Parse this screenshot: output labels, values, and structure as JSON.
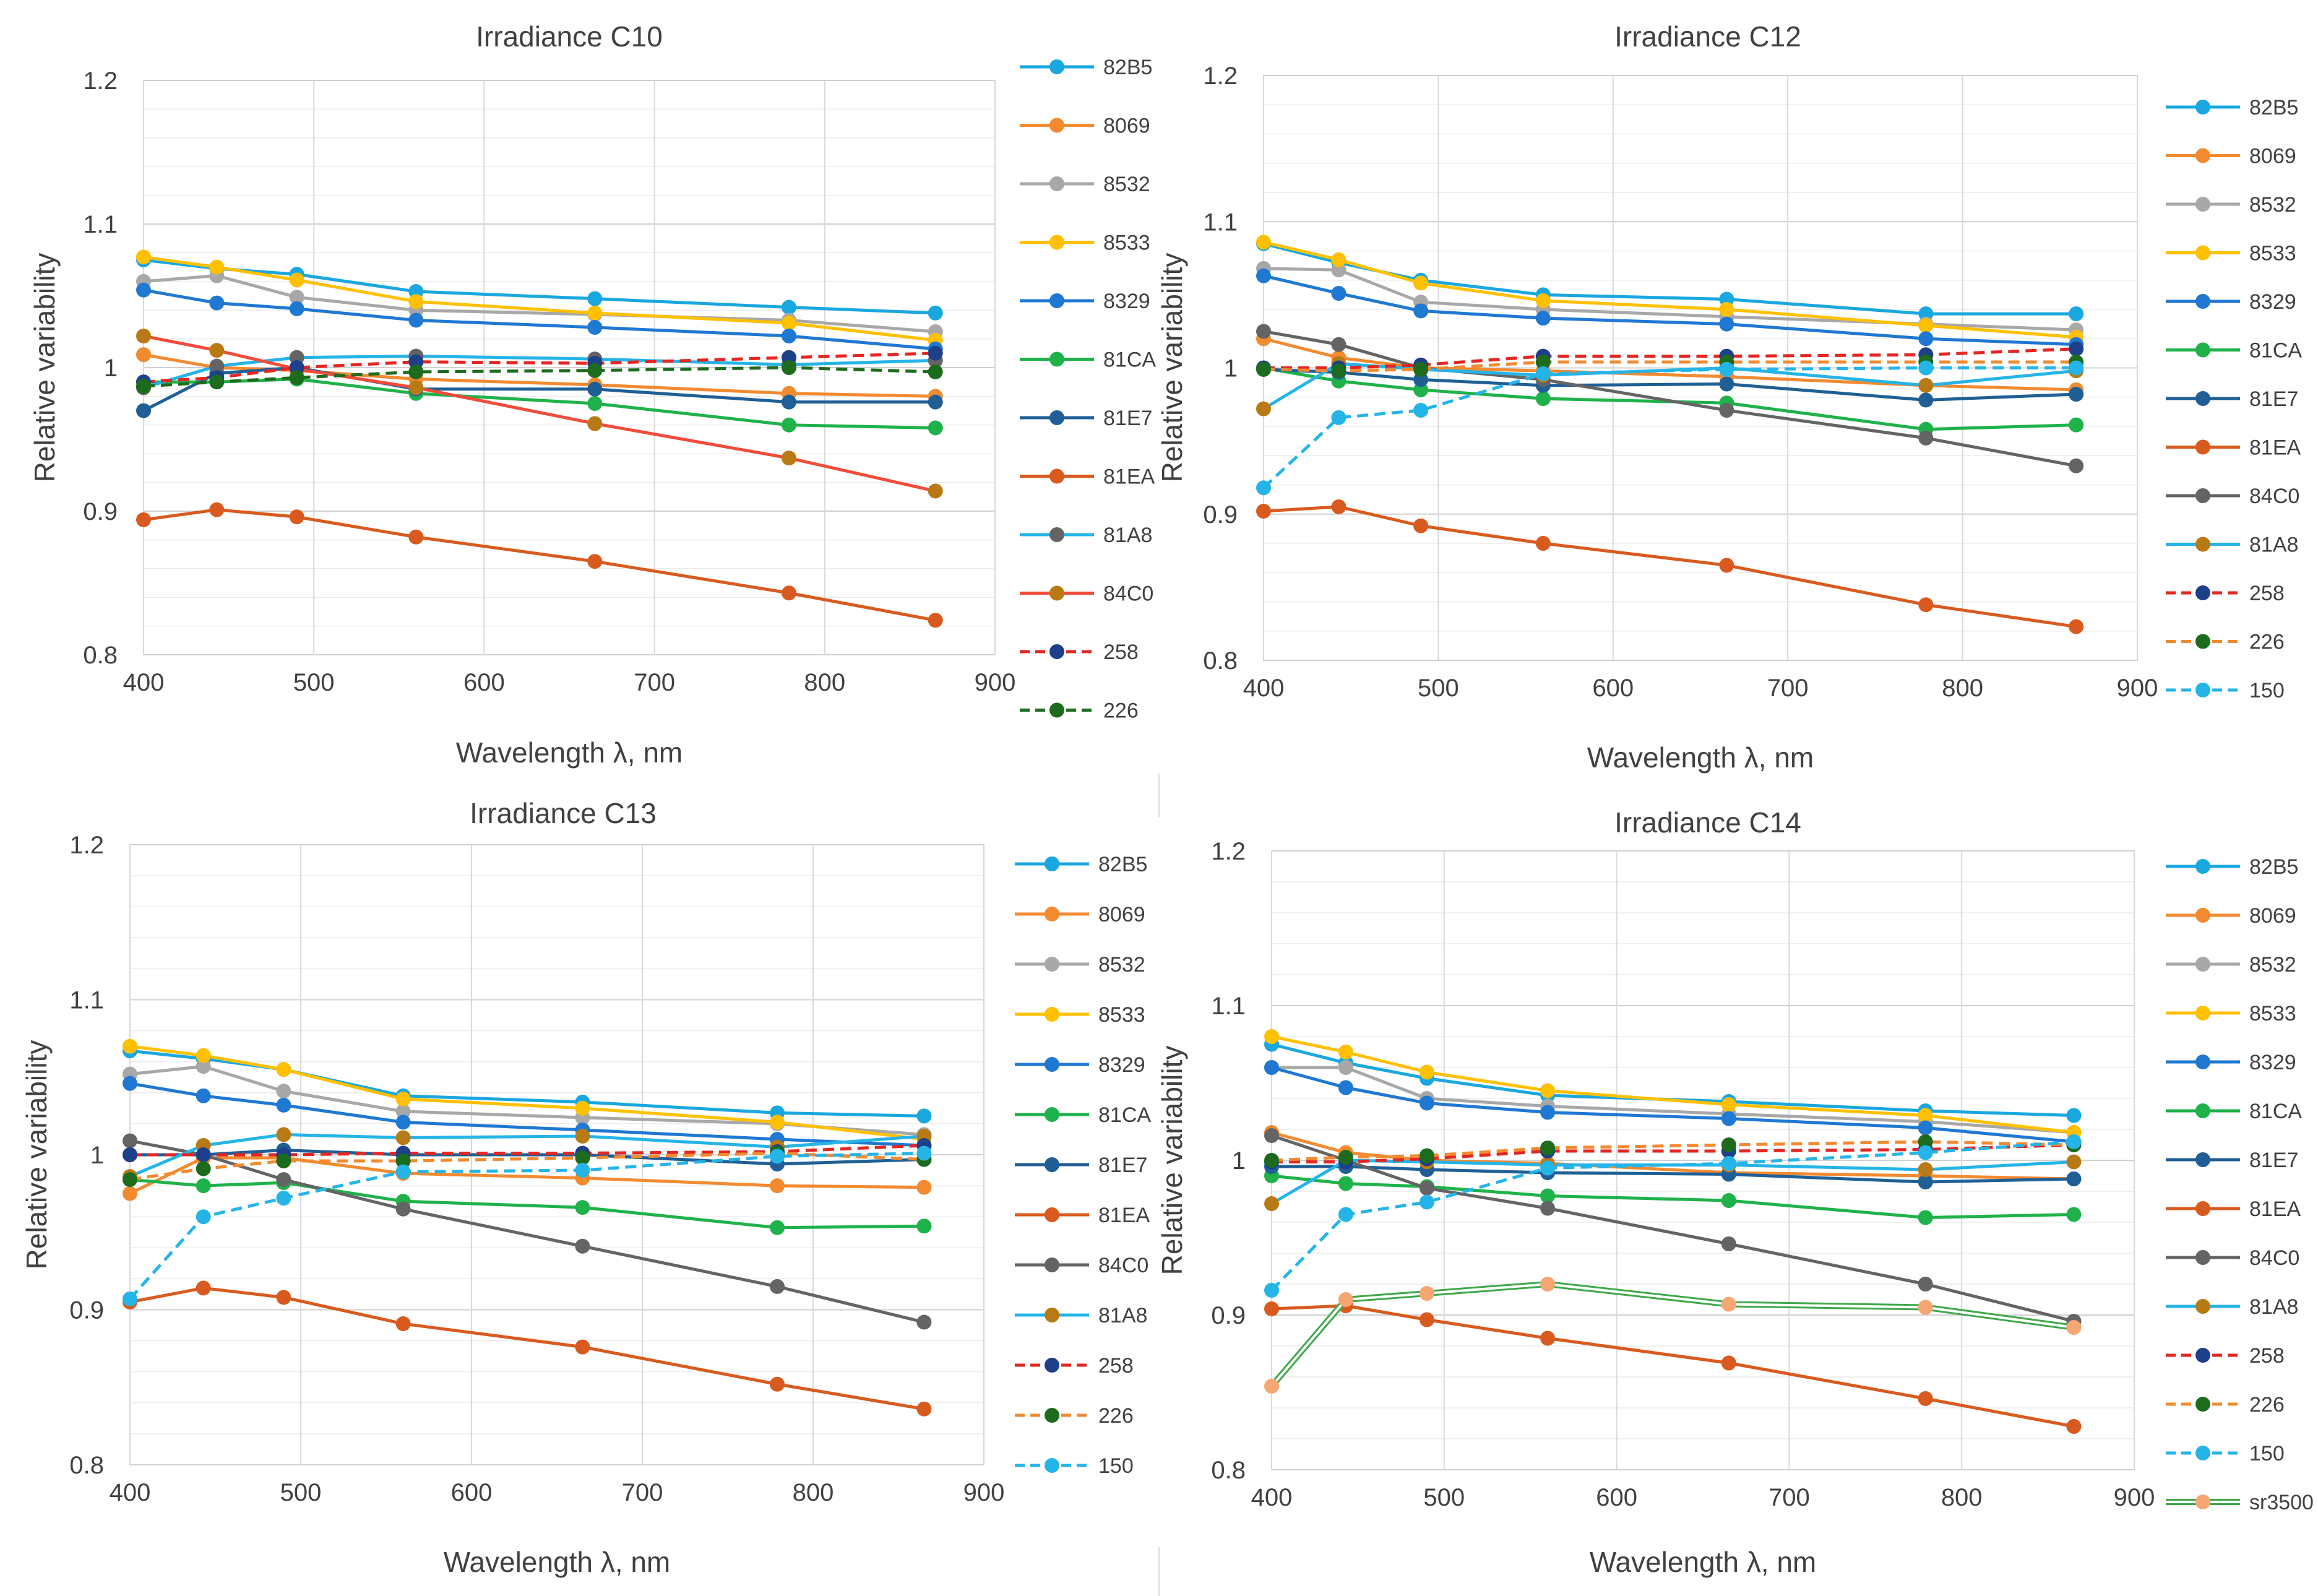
{
  "figure": {
    "colors": {
      "82B5": "#1aa7e0",
      "8069": "#f28a30",
      "8532": "#a8a8a8",
      "8533": "#ffc000",
      "8329": "#1f78d1",
      "81CA": "#1fb24a",
      "81E7": "#1f5f96",
      "81EA": "#d95a1e",
      "84C0": "#646464",
      "81A8": "#b87a14",
      "258_line": "#e52622",
      "258_marker": "#1e3f8a",
      "226_c10_line": "#1d6b1d",
      "226_line": "#f28a30",
      "226_marker": "#1d6b1d",
      "150": "#25b4e8",
      "sr3500_line": "#3ea84a",
      "sr3500_marker": "#f5a673"
    }
  },
  "chart_data": [
    {
      "type": "line",
      "title": "Irradiance C10",
      "xlabel": "Wavelength λ, nm",
      "ylabel": "Relative variability",
      "xlim": [
        400,
        900
      ],
      "ylim": [
        0.8,
        1.2
      ],
      "xticks": [
        "400",
        "500",
        "600",
        "700",
        "800",
        "900"
      ],
      "yticks": [
        "0.8",
        "0.9",
        "1",
        "1.1",
        "1.2"
      ],
      "grid": true,
      "legend_position": "right",
      "x": [
        400,
        443,
        490,
        560,
        665,
        779,
        865
      ],
      "series": [
        {
          "name": "82B5",
          "values": [
            1.075,
            1.069,
            1.065,
            1.053,
            1.048,
            1.042,
            1.038
          ],
          "color": "#1aa7e0",
          "marker": "#1aa7e0",
          "dash": "solid"
        },
        {
          "name": "8069",
          "values": [
            1.009,
            1.0,
            0.998,
            0.992,
            0.988,
            0.982,
            0.98
          ],
          "color": "#f28a30",
          "marker": "#f28a30",
          "dash": "solid"
        },
        {
          "name": "8532",
          "values": [
            1.06,
            1.064,
            1.049,
            1.04,
            1.037,
            1.033,
            1.025
          ],
          "color": "#a8a8a8",
          "marker": "#a8a8a8",
          "dash": "solid"
        },
        {
          "name": "8533",
          "values": [
            1.077,
            1.07,
            1.061,
            1.046,
            1.038,
            1.031,
            1.019
          ],
          "color": "#ffc000",
          "marker": "#ffc000",
          "dash": "solid"
        },
        {
          "name": "8329",
          "values": [
            1.054,
            1.045,
            1.041,
            1.033,
            1.028,
            1.022,
            1.013
          ],
          "color": "#1f78d1",
          "marker": "#1f78d1",
          "dash": "solid"
        },
        {
          "name": "81CA",
          "values": [
            0.99,
            0.99,
            0.992,
            0.982,
            0.975,
            0.96,
            0.958
          ],
          "color": "#1fb24a",
          "marker": "#1fb24a",
          "dash": "solid"
        },
        {
          "name": "81E7",
          "values": [
            0.97,
            0.996,
            1.0,
            0.985,
            0.985,
            0.976,
            0.976
          ],
          "color": "#1f5f96",
          "marker": "#1f5f96",
          "dash": "solid"
        },
        {
          "name": "81EA",
          "values": [
            0.894,
            0.901,
            0.896,
            0.882,
            0.865,
            0.843,
            0.824
          ],
          "color": "#d95a1e",
          "marker": "#d95a1e",
          "dash": "solid"
        },
        {
          "name": "81A8",
          "values": [
            0.986,
            1.001,
            1.007,
            1.008,
            1.006,
            1.002,
            1.005
          ],
          "color": "#25b4e8",
          "marker": "#646464",
          "dash": "solid"
        },
        {
          "name": "84C0",
          "values": [
            1.022,
            1.012,
            0.999,
            0.986,
            0.961,
            0.937,
            0.914
          ],
          "color": "#f24b3a",
          "marker": "#b87a14",
          "dash": "solid"
        },
        {
          "name": "258",
          "values": [
            0.99,
            0.993,
            1.0,
            1.004,
            1.003,
            1.007,
            1.01
          ],
          "color": "#e52622",
          "marker": "#1e3f8a",
          "dash": "dashed"
        },
        {
          "name": "226",
          "values": [
            0.987,
            0.99,
            0.993,
            0.997,
            0.998,
            1.0,
            0.997
          ],
          "color": "#1d6b1d",
          "marker": "#1d6b1d",
          "dash": "dashed"
        }
      ]
    },
    {
      "type": "line",
      "title": "Irradiance C12",
      "xlabel": "Wavelength λ, nm",
      "ylabel": "Relative variability",
      "xlim": [
        400,
        900
      ],
      "ylim": [
        0.8,
        1.2
      ],
      "xticks": [
        "400",
        "500",
        "600",
        "700",
        "800",
        "900"
      ],
      "yticks": [
        "0.8",
        "0.9",
        "1",
        "1.1",
        "1.2"
      ],
      "grid": true,
      "legend_position": "right",
      "x": [
        400,
        443,
        490,
        560,
        665,
        779,
        865
      ],
      "series": [
        {
          "name": "82B5",
          "values": [
            1.085,
            1.072,
            1.06,
            1.05,
            1.047,
            1.037,
            1.037
          ],
          "color": "#1aa7e0",
          "marker": "#1aa7e0",
          "dash": "solid"
        },
        {
          "name": "8069",
          "values": [
            1.02,
            1.007,
            1.0,
            0.998,
            0.994,
            0.988,
            0.985
          ],
          "color": "#f28a30",
          "marker": "#f28a30",
          "dash": "solid"
        },
        {
          "name": "8532",
          "values": [
            1.068,
            1.067,
            1.045,
            1.04,
            1.035,
            1.03,
            1.026
          ],
          "color": "#a8a8a8",
          "marker": "#a8a8a8",
          "dash": "solid"
        },
        {
          "name": "8533",
          "values": [
            1.086,
            1.074,
            1.058,
            1.046,
            1.04,
            1.029,
            1.021
          ],
          "color": "#ffc000",
          "marker": "#ffc000",
          "dash": "solid"
        },
        {
          "name": "8329",
          "values": [
            1.063,
            1.051,
            1.039,
            1.034,
            1.03,
            1.02,
            1.016
          ],
          "color": "#1f78d1",
          "marker": "#1f78d1",
          "dash": "solid"
        },
        {
          "name": "81CA",
          "values": [
            1.0,
            0.991,
            0.985,
            0.979,
            0.976,
            0.958,
            0.961
          ],
          "color": "#1fb24a",
          "marker": "#1fb24a",
          "dash": "solid"
        },
        {
          "name": "81E7",
          "values": [
            0.999,
            0.997,
            0.992,
            0.988,
            0.989,
            0.978,
            0.982
          ],
          "color": "#1f5f96",
          "marker": "#1f5f96",
          "dash": "solid"
        },
        {
          "name": "81EA",
          "values": [
            0.902,
            0.905,
            0.892,
            0.88,
            0.865,
            0.838,
            0.823
          ],
          "color": "#d95a1e",
          "marker": "#d95a1e",
          "dash": "solid"
        },
        {
          "name": "84C0",
          "values": [
            1.025,
            1.016,
            1.0,
            0.992,
            0.971,
            0.952,
            0.933
          ],
          "color": "#646464",
          "marker": "#646464",
          "dash": "solid"
        },
        {
          "name": "81A8",
          "values": [
            0.972,
            1.003,
            0.999,
            0.995,
            1.0,
            0.988,
            0.998
          ],
          "color": "#25b4e8",
          "marker": "#b87a14",
          "dash": "solid"
        },
        {
          "name": "258",
          "values": [
            1.0,
            1.0,
            1.002,
            1.008,
            1.008,
            1.009,
            1.013
          ],
          "color": "#e52622",
          "marker": "#1e3f8a",
          "dash": "dashed"
        },
        {
          "name": "226",
          "values": [
            0.999,
            0.998,
            0.999,
            1.004,
            1.004,
            1.004,
            1.004
          ],
          "color": "#f28a30",
          "marker": "#1d6b1d",
          "dash": "dashed"
        },
        {
          "name": "150",
          "values": [
            0.918,
            0.966,
            0.971,
            0.996,
            0.999,
            1.0,
            1.0
          ],
          "color": "#25b4e8",
          "marker": "#25b4e8",
          "dash": "dashed"
        }
      ]
    },
    {
      "type": "line",
      "title": "Irradiance C13",
      "xlabel": "Wavelength λ, nm",
      "ylabel": "Relative variability",
      "xlim": [
        400,
        900
      ],
      "ylim": [
        0.8,
        1.2
      ],
      "xticks": [
        "400",
        "500",
        "600",
        "700",
        "800",
        "900"
      ],
      "yticks": [
        "0.8",
        "0.9",
        "1",
        "1.1",
        "1.2"
      ],
      "grid": true,
      "legend_position": "right",
      "x": [
        400,
        443,
        490,
        560,
        665,
        779,
        865
      ],
      "series": [
        {
          "name": "82B5",
          "values": [
            1.067,
            1.062,
            1.055,
            1.038,
            1.034,
            1.027,
            1.025
          ],
          "color": "#1aa7e0",
          "marker": "#1aa7e0",
          "dash": "solid"
        },
        {
          "name": "8069",
          "values": [
            0.975,
            0.998,
            0.998,
            0.988,
            0.985,
            0.98,
            0.979
          ],
          "color": "#f28a30",
          "marker": "#f28a30",
          "dash": "solid"
        },
        {
          "name": "8532",
          "values": [
            1.052,
            1.057,
            1.041,
            1.028,
            1.024,
            1.02,
            1.013
          ],
          "color": "#a8a8a8",
          "marker": "#a8a8a8",
          "dash": "solid"
        },
        {
          "name": "8533",
          "values": [
            1.07,
            1.064,
            1.055,
            1.036,
            1.03,
            1.021,
            1.01
          ],
          "color": "#ffc000",
          "marker": "#ffc000",
          "dash": "solid"
        },
        {
          "name": "8329",
          "values": [
            1.046,
            1.038,
            1.032,
            1.021,
            1.016,
            1.01,
            1.006
          ],
          "color": "#1f78d1",
          "marker": "#1f78d1",
          "dash": "solid"
        },
        {
          "name": "81CA",
          "values": [
            0.984,
            0.98,
            0.982,
            0.97,
            0.966,
            0.953,
            0.954
          ],
          "color": "#1fb24a",
          "marker": "#1fb24a",
          "dash": "solid"
        },
        {
          "name": "81E7",
          "values": [
            1.0,
            1.0,
            1.003,
            1.0,
            1.0,
            0.994,
            0.997
          ],
          "color": "#1f5f96",
          "marker": "#1f5f96",
          "dash": "solid"
        },
        {
          "name": "81EA",
          "values": [
            0.905,
            0.914,
            0.908,
            0.891,
            0.876,
            0.852,
            0.836
          ],
          "color": "#d95a1e",
          "marker": "#d95a1e",
          "dash": "solid"
        },
        {
          "name": "84C0",
          "values": [
            1.009,
            1.0,
            0.984,
            0.965,
            0.941,
            0.915,
            0.892
          ],
          "color": "#646464",
          "marker": "#646464",
          "dash": "solid"
        },
        {
          "name": "81A8",
          "values": [
            0.986,
            1.006,
            1.013,
            1.011,
            1.012,
            1.005,
            1.012
          ],
          "color": "#25b4e8",
          "marker": "#b87a14",
          "dash": "solid"
        },
        {
          "name": "258",
          "values": [
            1.0,
            1.0,
            1.0,
            1.001,
            1.001,
            1.002,
            1.006
          ],
          "color": "#e52622",
          "marker": "#1e3f8a",
          "dash": "dashed"
        },
        {
          "name": "226",
          "values": [
            0.984,
            0.991,
            0.996,
            0.996,
            0.998,
            1.001,
            0.997
          ],
          "color": "#f28a30",
          "marker": "#1d6b1d",
          "dash": "dashed"
        },
        {
          "name": "150",
          "values": [
            0.907,
            0.96,
            0.972,
            0.989,
            0.99,
            0.999,
            1.001
          ],
          "color": "#25b4e8",
          "marker": "#25b4e8",
          "dash": "dashed"
        }
      ]
    },
    {
      "type": "line",
      "title": "Irradiance C14",
      "xlabel": "Wavelength λ, nm",
      "ylabel": "Relative variability",
      "xlim": [
        400,
        900
      ],
      "ylim": [
        0.8,
        1.2
      ],
      "xticks": [
        "400",
        "500",
        "600",
        "700",
        "800",
        "900"
      ],
      "yticks": [
        "0.8",
        "0.9",
        "1",
        "1.1",
        "1.2"
      ],
      "grid": true,
      "legend_position": "right",
      "x": [
        400,
        443,
        490,
        560,
        665,
        779,
        865
      ],
      "series": [
        {
          "name": "82B5",
          "values": [
            1.075,
            1.063,
            1.053,
            1.042,
            1.038,
            1.032,
            1.029
          ],
          "color": "#1aa7e0",
          "marker": "#1aa7e0",
          "dash": "solid"
        },
        {
          "name": "8069",
          "values": [
            1.018,
            1.005,
            1.0,
            0.998,
            0.992,
            0.99,
            0.988
          ],
          "color": "#f28a30",
          "marker": "#f28a30",
          "dash": "solid"
        },
        {
          "name": "8532",
          "values": [
            1.06,
            1.06,
            1.04,
            1.035,
            1.03,
            1.025,
            1.018
          ],
          "color": "#a8a8a8",
          "marker": "#a8a8a8",
          "dash": "solid"
        },
        {
          "name": "8533",
          "values": [
            1.08,
            1.07,
            1.057,
            1.045,
            1.036,
            1.029,
            1.018
          ],
          "color": "#ffc000",
          "marker": "#ffc000",
          "dash": "solid"
        },
        {
          "name": "8329",
          "values": [
            1.06,
            1.047,
            1.037,
            1.031,
            1.027,
            1.021,
            1.012
          ],
          "color": "#1f78d1",
          "marker": "#1f78d1",
          "dash": "solid"
        },
        {
          "name": "81CA",
          "values": [
            0.99,
            0.985,
            0.983,
            0.977,
            0.974,
            0.963,
            0.965
          ],
          "color": "#1fb24a",
          "marker": "#1fb24a",
          "dash": "solid"
        },
        {
          "name": "81E7",
          "values": [
            0.996,
            0.996,
            0.994,
            0.992,
            0.991,
            0.986,
            0.988
          ],
          "color": "#1f5f96",
          "marker": "#1f5f96",
          "dash": "solid"
        },
        {
          "name": "81EA",
          "values": [
            0.904,
            0.906,
            0.897,
            0.885,
            0.869,
            0.846,
            0.828
          ],
          "color": "#d95a1e",
          "marker": "#d95a1e",
          "dash": "solid"
        },
        {
          "name": "84C0",
          "values": [
            1.016,
            1.0,
            0.982,
            0.969,
            0.946,
            0.92,
            0.896
          ],
          "color": "#646464",
          "marker": "#646464",
          "dash": "solid"
        },
        {
          "name": "81A8",
          "values": [
            0.972,
            1.0,
            0.999,
            0.997,
            0.997,
            0.994,
            0.999
          ],
          "color": "#25b4e8",
          "marker": "#b87a14",
          "dash": "solid"
        },
        {
          "name": "258",
          "values": [
            0.999,
            0.999,
            1.001,
            1.006,
            1.006,
            1.007,
            1.01
          ],
          "color": "#e52622",
          "marker": "#1e3f8a",
          "dash": "dashed"
        },
        {
          "name": "226",
          "values": [
            1.0,
            1.002,
            1.003,
            1.008,
            1.01,
            1.012,
            1.01
          ],
          "color": "#f28a30",
          "marker": "#1d6b1d",
          "dash": "dashed"
        },
        {
          "name": "150",
          "values": [
            0.916,
            0.965,
            0.973,
            0.995,
            0.998,
            1.005,
            1.012
          ],
          "color": "#25b4e8",
          "marker": "#25b4e8",
          "dash": "dashed"
        },
        {
          "name": "sr3500",
          "values": [
            0.854,
            0.91,
            0.914,
            0.92,
            0.907,
            0.905,
            0.892
          ],
          "color": "#3ea84a",
          "marker": "#f5a673",
          "dash": "double"
        }
      ]
    }
  ]
}
